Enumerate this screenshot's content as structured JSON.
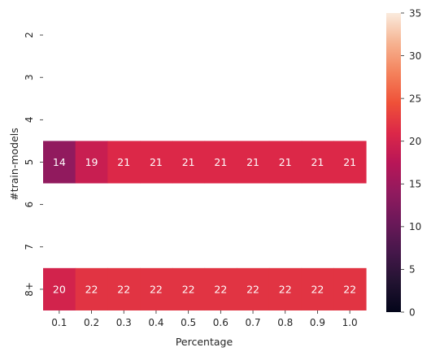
{
  "chart_data": {
    "type": "heatmap",
    "xlabel": "Percentage",
    "ylabel": "#train-models",
    "x_categories": [
      "0.1",
      "0.2",
      "0.3",
      "0.4",
      "0.5",
      "0.6",
      "0.7",
      "0.8",
      "0.9",
      "1.0"
    ],
    "y_categories": [
      "2",
      "3",
      "4",
      "5",
      "6",
      "7",
      "8+"
    ],
    "values": [
      [
        null,
        null,
        null,
        null,
        null,
        null,
        null,
        null,
        null,
        null
      ],
      [
        null,
        null,
        null,
        null,
        null,
        null,
        null,
        null,
        null,
        null
      ],
      [
        null,
        null,
        null,
        null,
        null,
        null,
        null,
        null,
        null,
        null
      ],
      [
        14,
        19,
        21,
        21,
        21,
        21,
        21,
        21,
        21,
        21
      ],
      [
        null,
        null,
        null,
        null,
        null,
        null,
        null,
        null,
        null,
        null
      ],
      [
        null,
        null,
        null,
        null,
        null,
        null,
        null,
        null,
        null,
        null
      ],
      [
        20,
        22,
        22,
        22,
        22,
        22,
        22,
        22,
        22,
        22
      ]
    ],
    "colorbar": {
      "range": [
        0,
        35
      ],
      "ticks": [
        "0",
        "5",
        "10",
        "15",
        "20",
        "25",
        "30",
        "35"
      ],
      "colormap": "rocket"
    },
    "cell_text_color": "#ffffff"
  }
}
